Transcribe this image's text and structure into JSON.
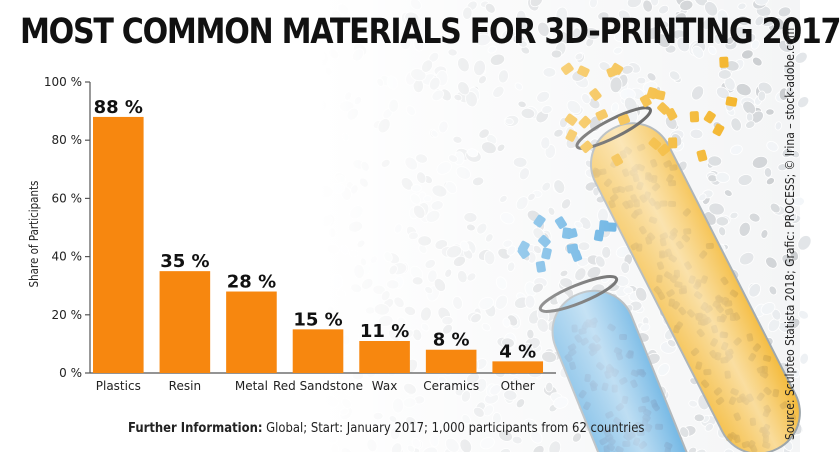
{
  "title": "MOST COMMON MATERIALS FOR 3D-PRINTING 2017",
  "footnote": {
    "label": "Further Information:",
    "text": " Global; Start: January 2017; 1,000 participants from 62 countries"
  },
  "source": "Source: Sculpteo Statista 2018; Grafic: PROCESS; © Irina – stock-adobe.com",
  "colors": {
    "bar": "#F7870F",
    "axis": "#555555",
    "pellet": "#e6e8ea",
    "yellow_pellet": "#f2ad14",
    "blue_pellet": "#2f95d8"
  },
  "chart_data": {
    "type": "bar",
    "categories": [
      "Plastics",
      "Resin",
      "Metal",
      "Red Sandstone",
      "Wax",
      "Ceramics",
      "Other"
    ],
    "values": [
      88,
      35,
      28,
      15,
      11,
      8,
      4
    ],
    "value_labels": [
      "88 %",
      "35 %",
      "28 %",
      "15 %",
      "11 %",
      "8 %",
      "4 %"
    ],
    "ylabel": "Share of Participants",
    "xlabel": "",
    "ylim": [
      0,
      100
    ],
    "yticks": [
      0,
      20,
      40,
      60,
      80,
      100
    ],
    "ytick_labels": [
      "0 %",
      "20 %",
      "40 %",
      "60 %",
      "80 %",
      "100 %"
    ],
    "grid": false,
    "legend": "none"
  }
}
